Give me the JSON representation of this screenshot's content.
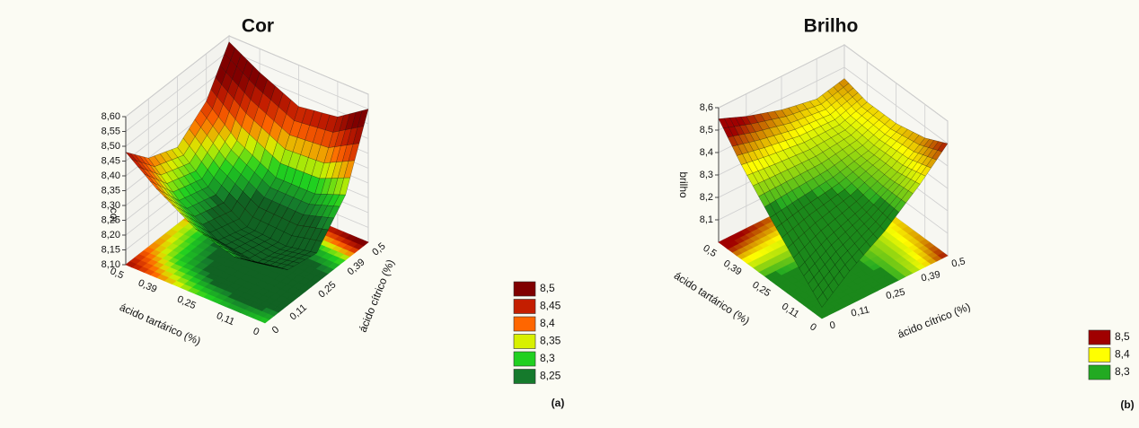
{
  "chart_data": [
    {
      "type": "surface3d",
      "title": "Cor",
      "zlabel": "cor",
      "xlabel": "ácido cítrico (%)",
      "ylabel": "ácido tartárico (%)",
      "panel_label": "(a)",
      "xlim": [
        0,
        0.5
      ],
      "ylim": [
        0,
        0.5
      ],
      "zlim": [
        8.1,
        8.6
      ],
      "xticks": [
        0,
        {
          "value": 0.11,
          "label": "0,11"
        },
        {
          "value": 0.25,
          "label": "0,25"
        },
        {
          "value": 0.39,
          "label": "0,39"
        },
        {
          "value": 0.5,
          "label": "0,5"
        }
      ],
      "yticks": [
        0,
        {
          "value": 0.11,
          "label": "0,11"
        },
        {
          "value": 0.25,
          "label": "0,25"
        },
        {
          "value": 0.39,
          "label": "0,39"
        },
        {
          "value": 0.5,
          "label": "0,5"
        }
      ],
      "zticks": [
        {
          "value": 8.1,
          "label": "8,10"
        },
        {
          "value": 8.15,
          "label": "8,15"
        },
        {
          "value": 8.2,
          "label": "8,20"
        },
        {
          "value": 8.25,
          "label": "8,25"
        },
        {
          "value": 8.3,
          "label": "8,30"
        },
        {
          "value": 8.35,
          "label": "8,35"
        },
        {
          "value": 8.4,
          "label": "8,40"
        },
        {
          "value": 8.45,
          "label": "8,45"
        },
        {
          "value": 8.5,
          "label": "8,50"
        },
        {
          "value": 8.55,
          "label": "8,55"
        },
        {
          "value": 8.6,
          "label": "8,60"
        }
      ],
      "x": [
        0,
        0.11,
        0.25,
        0.39,
        0.5
      ],
      "y": [
        0,
        0.11,
        0.25,
        0.39,
        0.5
      ],
      "z": [
        [
          8.3,
          8.22,
          8.2,
          8.32,
          8.55
        ],
        [
          8.28,
          8.2,
          8.18,
          8.28,
          8.48
        ],
        [
          8.32,
          8.22,
          8.19,
          8.28,
          8.46
        ],
        [
          8.4,
          8.3,
          8.27,
          8.35,
          8.52
        ],
        [
          8.48,
          8.4,
          8.36,
          8.44,
          8.58
        ]
      ],
      "levels": [
        {
          "value": 8.5,
          "label": "8,5",
          "color": "#800000"
        },
        {
          "value": 8.45,
          "label": "8,45",
          "color": "#c41e00"
        },
        {
          "value": 8.4,
          "label": "8,4",
          "color": "#ff6600"
        },
        {
          "value": 8.35,
          "label": "8,35",
          "color": "#d8f000"
        },
        {
          "value": 8.3,
          "label": "8,3",
          "color": "#20d020"
        },
        {
          "value": 8.25,
          "label": "8,25",
          "color": "#157a2c"
        }
      ]
    },
    {
      "type": "surface3d",
      "title": "Brilho",
      "zlabel": "brilho",
      "xlabel": "ácido cítrico (%)",
      "ylabel": "ácido tartárico (%)",
      "panel_label": "(b)",
      "xlim": [
        0,
        0.5
      ],
      "ylim": [
        0,
        0.5
      ],
      "zlim": [
        8.0,
        8.6
      ],
      "xticks": [
        0,
        {
          "value": 0.11,
          "label": "0,11"
        },
        {
          "value": 0.25,
          "label": "0,25"
        },
        {
          "value": 0.39,
          "label": "0,39"
        },
        {
          "value": 0.5,
          "label": "0,5"
        }
      ],
      "yticks": [
        0,
        {
          "value": 0.11,
          "label": "0,11"
        },
        {
          "value": 0.25,
          "label": "0,25"
        },
        {
          "value": 0.39,
          "label": "0,39"
        },
        {
          "value": 0.5,
          "label": "0,5"
        }
      ],
      "zticks": [
        {
          "value": 8.1,
          "label": "8,1"
        },
        {
          "value": 8.2,
          "label": "8,2"
        },
        {
          "value": 8.3,
          "label": "8,3"
        },
        {
          "value": 8.4,
          "label": "8,4"
        },
        {
          "value": 8.5,
          "label": "8,5"
        },
        {
          "value": 8.6,
          "label": "8,6"
        }
      ],
      "x": [
        0,
        0.11,
        0.25,
        0.39,
        0.5
      ],
      "y": [
        0,
        0.11,
        0.25,
        0.39,
        0.5
      ],
      "z": [
        [
          8.05,
          8.15,
          8.25,
          8.38,
          8.5
        ],
        [
          8.15,
          8.22,
          8.28,
          8.36,
          8.45
        ],
        [
          8.28,
          8.3,
          8.32,
          8.36,
          8.42
        ],
        [
          8.42,
          8.4,
          8.38,
          8.38,
          8.42
        ],
        [
          8.55,
          8.5,
          8.45,
          8.42,
          8.45
        ]
      ],
      "levels": [
        {
          "value": 8.5,
          "label": "8,5",
          "color": "#a00000"
        },
        {
          "value": 8.4,
          "label": "8,4",
          "color": "#ffff00"
        },
        {
          "value": 8.3,
          "label": "8,3",
          "color": "#22aa22"
        }
      ]
    }
  ]
}
